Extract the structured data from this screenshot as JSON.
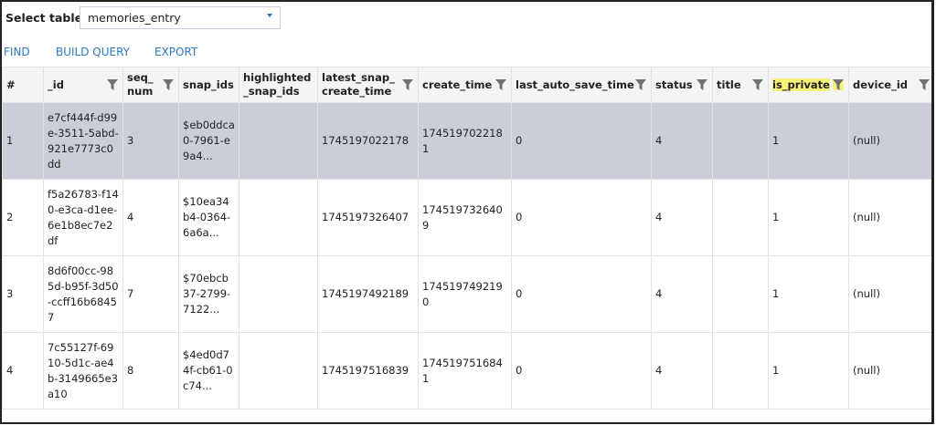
{
  "select_table": {
    "label": "Select table",
    "value": "memories_entry"
  },
  "actions": {
    "find": "FIND",
    "build_query": "BUILD QUERY",
    "export": "EXPORT"
  },
  "columns": [
    {
      "label": "#",
      "filter": false
    },
    {
      "label": "_id",
      "filter": true
    },
    {
      "label": "seq_ num",
      "filter": true
    },
    {
      "label": "snap_ids",
      "filter": false
    },
    {
      "label": "highlighted _snap_ids",
      "filter": false
    },
    {
      "label": "latest_snap_ create_time",
      "filter": true
    },
    {
      "label": "create_time",
      "filter": true
    },
    {
      "label": "last_auto_save_time",
      "filter": true
    },
    {
      "label": "status",
      "filter": true
    },
    {
      "label": "title",
      "filter": true
    },
    {
      "label": "is_private",
      "filter": true,
      "highlighted": true
    },
    {
      "label": "device_id",
      "filter": true
    }
  ],
  "rows": [
    {
      "selected": true,
      "cells": [
        "1",
        "e7cf444f-d99e-3511-5abd-921e7773c0dd",
        "3",
        "$eb0ddca0-7961-e9a4...",
        "",
        "1745197022178",
        "1745197022181",
        "0",
        "4",
        "",
        "1",
        "(null)"
      ]
    },
    {
      "cells": [
        "2",
        "f5a26783-f140-e3ca-d1ee-6e1b8ec7e2df",
        "4",
        "$10ea34b4-0364-6a6a...",
        "",
        "1745197326407",
        "1745197326409",
        "0",
        "4",
        "",
        "1",
        "(null)"
      ]
    },
    {
      "cells": [
        "3",
        "8d6f00cc-985d-b95f-3d50-ccff16b68457",
        "7",
        "$70ebcb37-2799-7122...",
        "",
        "1745197492189",
        "1745197492190",
        "0",
        "4",
        "",
        "1",
        "(null)"
      ]
    },
    {
      "cells": [
        "4",
        "7c55127f-6910-5d1c-ae4b-3149665e3a10",
        "8",
        "$4ed0d74f-cb61-0c74...",
        "",
        "1745197516839",
        "1745197516841",
        "0",
        "4",
        "",
        "1",
        "(null)"
      ]
    }
  ],
  "colors": {
    "accent": "#2a7bc4",
    "selected_row": "#cbcdd9",
    "highlight": "#f7f27a"
  }
}
